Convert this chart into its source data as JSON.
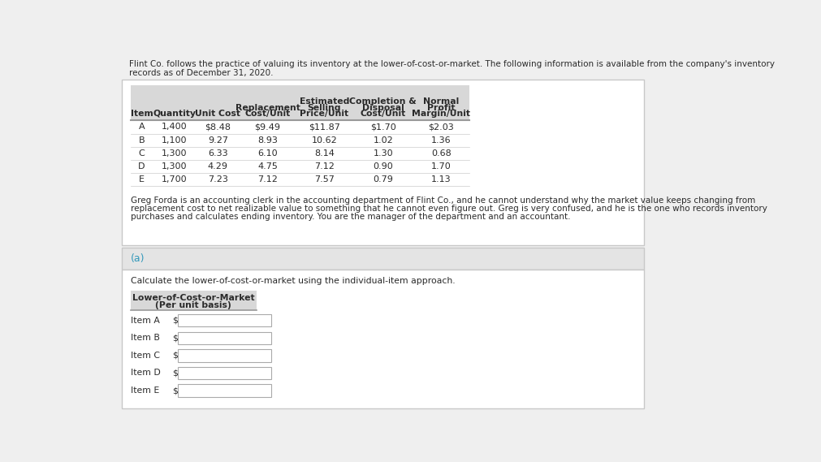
{
  "intro_text_line1": "Flint Co. follows the practice of valuing its inventory at the lower-of-cost-or-market. The following information is available from the company's inventory",
  "intro_text_line2": "records as of December 31, 2020.",
  "table_headers": [
    "Item",
    "Quantity",
    "Unit Cost",
    "Replacement\nCost/Unit",
    "Estimated\nSelling\nPrice/Unit",
    "Completion &\nDisposal\nCost/Unit",
    "Normal\nProfit\nMargin/Unit"
  ],
  "table_data": [
    [
      "A",
      "1,400",
      "$8.48",
      "$9.49",
      "$11.87",
      "$1.70",
      "$2.03"
    ],
    [
      "B",
      "1,100",
      "9.27",
      "8.93",
      "10.62",
      "1.02",
      "1.36"
    ],
    [
      "C",
      "1,300",
      "6.33",
      "6.10",
      "8.14",
      "1.30",
      "0.68"
    ],
    [
      "D",
      "1,300",
      "4.29",
      "4.75",
      "7.12",
      "0.90",
      "1.70"
    ],
    [
      "E",
      "1,700",
      "7.23",
      "7.12",
      "7.57",
      "0.79",
      "1.13"
    ]
  ],
  "paragraph_text": "Greg Forda is an accounting clerk in the accounting department of Flint Co., and he cannot understand why the market value keeps changing from\nreplacement cost to net realizable value to something that he cannot even figure out. Greg is very confused, and he is the one who records inventory\npurchases and calculates ending inventory. You are the manager of the department and an accountant.",
  "section_label": "(a)",
  "instruction_text": "Calculate the lower-of-cost-or-market using the individual-item approach.",
  "lcm_header_line1": "Lower-of-Cost-or-Market",
  "lcm_header_line2": "(Per unit basis)",
  "items": [
    "Item A",
    "Item B",
    "Item C",
    "Item D",
    "Item E"
  ],
  "bg_color": "#efefef",
  "white": "#ffffff",
  "table_bg": "#e8e8e8",
  "table_header_bg": "#d8d8d8",
  "section_bg": "#e4e4e4",
  "card_bg": "#f7f7f7",
  "teal_color": "#3399bb",
  "text_color": "#2a2a2a",
  "border_color": "#c8c8c8",
  "input_box_color": "#ffffff",
  "header_line_color": "#999999",
  "row_line_color": "#cccccc"
}
